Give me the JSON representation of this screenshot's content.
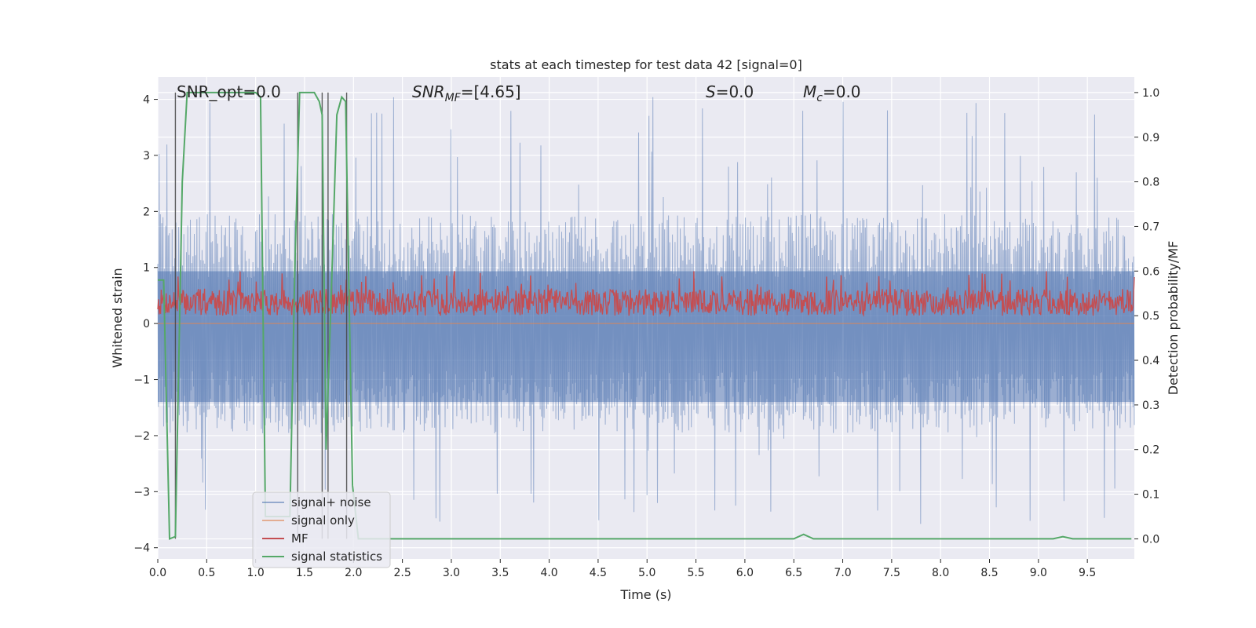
{
  "chart_data": {
    "type": "line",
    "title": "stats at each timestep for test data 42 [signal=0]",
    "xlabel": "Time (s)",
    "ylabel_left": "Whitened strain",
    "ylabel_right": "Detection probability/MF",
    "xlim": [
      0.0,
      9.98
    ],
    "ylim_left": [
      -4.2,
      4.4
    ],
    "ylim_right": [
      -0.045,
      1.035
    ],
    "x_ticks": [
      "0.0",
      "0.5",
      "1.0",
      "1.5",
      "2.0",
      "2.5",
      "3.0",
      "3.5",
      "4.0",
      "4.5",
      "5.0",
      "5.5",
      "6.0",
      "6.5",
      "7.0",
      "7.5",
      "8.0",
      "8.5",
      "9.0",
      "9.5"
    ],
    "y_ticks_left": [
      "4",
      "3",
      "2",
      "1",
      "0",
      "−1",
      "−2",
      "−3",
      "−4"
    ],
    "y_ticks_right": [
      "1.0",
      "0.9",
      "0.8",
      "0.7",
      "0.6",
      "0.5",
      "0.4",
      "0.3",
      "0.2",
      "0.1",
      "0.0"
    ],
    "grid": true,
    "legend_position": "lower-left",
    "annotations": {
      "snr_opt": "SNR_opt=0.0",
      "snr_mf_main": "SNR",
      "snr_mf_sub": "MF",
      "snr_mf_value": "=[4.65]",
      "s_main": "S",
      "s_value": "=0.0",
      "mc_main": "M",
      "mc_sub": "c",
      "mc_value": "=0.0"
    },
    "vertical_lines_x": [
      0.18,
      1.43,
      1.68,
      1.74,
      1.93
    ],
    "series": [
      {
        "name": "signal+ noise",
        "axis": "left",
        "color": "#4c72b0",
        "description_values": {
          "lower_envelope": -1.4,
          "upper_envelope": 1.7,
          "max": 4.05,
          "min": -3.6
        }
      },
      {
        "name": "signal only",
        "axis": "left",
        "color": "#dd8452",
        "description_values": {
          "constant": 0.0
        }
      },
      {
        "name": "MF",
        "axis": "right",
        "color": "#c44e52",
        "description_values": {
          "baseline": 0.5,
          "typical_peak": 0.56,
          "max": 0.6
        }
      },
      {
        "name": "signal statistics",
        "axis": "right",
        "color": "#55a868",
        "x": [
          0.0,
          0.06,
          0.12,
          0.18,
          0.25,
          0.3,
          0.6,
          1.0,
          1.05,
          1.1,
          1.35,
          1.4,
          1.45,
          1.55,
          1.6,
          1.65,
          1.68,
          1.72,
          1.78,
          1.83,
          1.88,
          1.92,
          1.95,
          1.99,
          2.05,
          6.5,
          6.6,
          6.7,
          9.15,
          9.25,
          9.35,
          9.95
        ],
        "y": [
          0.58,
          0.58,
          0.0,
          0.005,
          0.8,
          1.0,
          1.0,
          1.0,
          0.99,
          0.05,
          0.05,
          0.6,
          1.0,
          1.0,
          1.0,
          0.98,
          0.95,
          0.2,
          0.6,
          0.95,
          0.99,
          0.98,
          0.6,
          0.12,
          0.0,
          0.0,
          0.01,
          0.0,
          0.0,
          0.005,
          0.0,
          0.0
        ]
      }
    ]
  }
}
